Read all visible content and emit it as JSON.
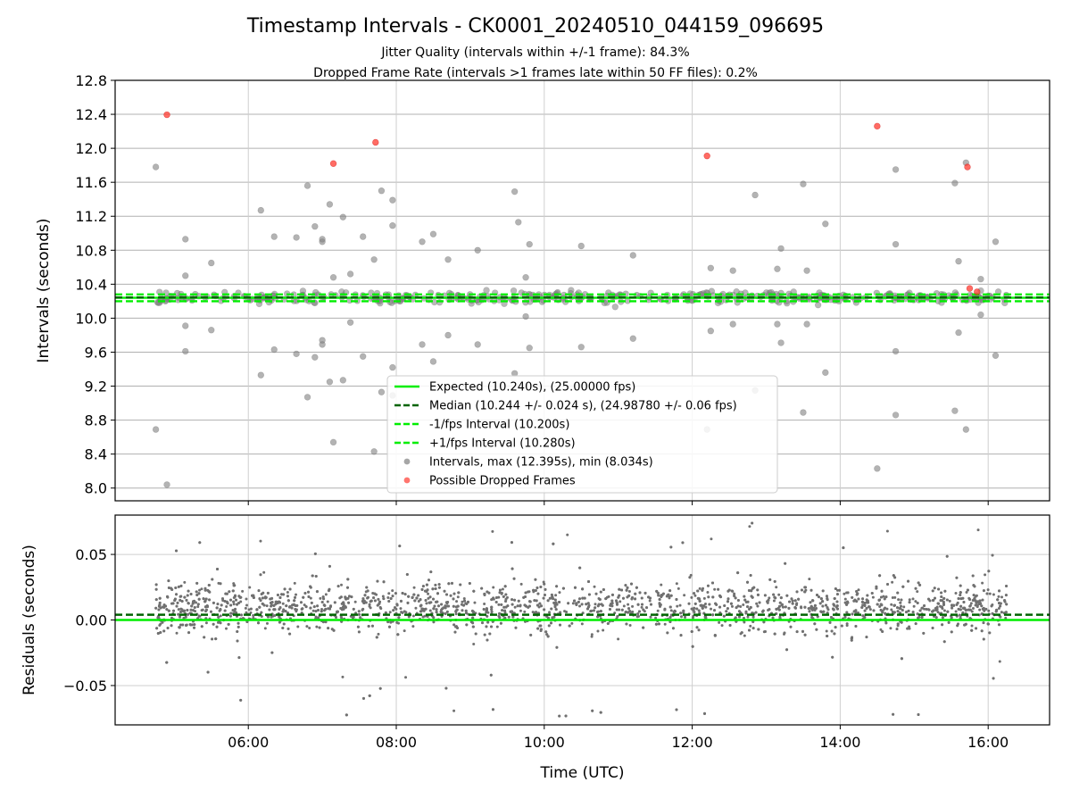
{
  "header": {
    "title": "Timestamp Intervals - CK0001_20240510_044159_096695",
    "subtitle1": "Jitter Quality (intervals within +/-1 frame): 84.3%",
    "subtitle2": "Dropped Frame Rate (intervals >1 frames late within 50 FF files): 0.2%"
  },
  "chart_data": [
    {
      "type": "scatter",
      "ylabel": "Intervals (seconds)",
      "xlabel": "",
      "xlim_hours": [
        4.2,
        16.83
      ],
      "ylim": [
        7.85,
        12.8
      ],
      "yticks": [
        8.0,
        8.4,
        8.8,
        9.2,
        9.6,
        10.0,
        10.4,
        10.8,
        11.2,
        11.6,
        12.0,
        12.4,
        12.8
      ],
      "ytick_labels": [
        "8.0",
        "8.4",
        "8.8",
        "9.2",
        "9.6",
        "10.0",
        "10.4",
        "10.8",
        "11.2",
        "11.6",
        "12.0",
        "12.4",
        "12.8"
      ],
      "grid": true,
      "legend_position": "lower-center",
      "lines": [
        {
          "name": "Expected (10.240s), (25.00000 fps)",
          "y": 10.24,
          "color": "#00ee00",
          "style": "solid"
        },
        {
          "name": "Median (10.244 +/- 0.024 s), (24.98780 +/- 0.06 fps)",
          "y": 10.244,
          "color": "#006400",
          "style": "dashed"
        },
        {
          "name": "-1/fps Interval (10.200s)",
          "y": 10.2,
          "color": "#00ee00",
          "style": "dashed"
        },
        {
          "name": "+1/fps Interval (10.280s)",
          "y": 10.28,
          "color": "#00ee00",
          "style": "dashed"
        }
      ],
      "series": [
        {
          "name": "Intervals, max (12.395s), min (8.034s)",
          "color": "#808080",
          "marker": "circle",
          "points": [
            [
              4.75,
              11.78
            ],
            [
              4.75,
              8.69
            ],
            [
              4.9,
              8.04
            ],
            [
              5.15,
              10.93
            ],
            [
              5.15,
              10.5
            ],
            [
              5.15,
              9.91
            ],
            [
              5.15,
              9.61
            ],
            [
              5.5,
              10.65
            ],
            [
              5.5,
              9.86
            ],
            [
              6.17,
              11.27
            ],
            [
              6.17,
              9.33
            ],
            [
              6.35,
              10.96
            ],
            [
              6.35,
              9.63
            ],
            [
              6.65,
              10.95
            ],
            [
              6.65,
              9.58
            ],
            [
              6.8,
              11.56
            ],
            [
              6.8,
              9.07
            ],
            [
              6.9,
              11.08
            ],
            [
              6.9,
              9.54
            ],
            [
              7.0,
              10.9
            ],
            [
              7.0,
              10.93
            ],
            [
              7.0,
              9.74
            ],
            [
              7.0,
              9.69
            ],
            [
              7.1,
              11.34
            ],
            [
              7.1,
              9.25
            ],
            [
              7.15,
              10.48
            ],
            [
              7.15,
              8.54
            ],
            [
              7.28,
              11.19
            ],
            [
              7.28,
              9.27
            ],
            [
              7.38,
              10.52
            ],
            [
              7.38,
              9.95
            ],
            [
              7.55,
              10.96
            ],
            [
              7.55,
              9.55
            ],
            [
              7.7,
              10.69
            ],
            [
              7.7,
              8.43
            ],
            [
              7.8,
              11.5
            ],
            [
              7.8,
              9.13
            ],
            [
              7.95,
              11.39
            ],
            [
              7.95,
              11.09
            ],
            [
              7.95,
              9.42
            ],
            [
              7.95,
              9.09
            ],
            [
              8.35,
              10.9
            ],
            [
              8.35,
              9.69
            ],
            [
              8.5,
              10.99
            ],
            [
              8.5,
              9.49
            ],
            [
              8.7,
              10.69
            ],
            [
              8.7,
              9.8
            ],
            [
              9.1,
              10.8
            ],
            [
              9.1,
              9.69
            ],
            [
              9.6,
              11.49
            ],
            [
              9.6,
              9.35
            ],
            [
              9.65,
              11.13
            ],
            [
              9.8,
              10.87
            ],
            [
              9.8,
              9.65
            ],
            [
              9.75,
              10.48
            ],
            [
              9.75,
              10.02
            ],
            [
              10.5,
              10.85
            ],
            [
              10.5,
              9.66
            ],
            [
              11.2,
              10.74
            ],
            [
              11.2,
              9.76
            ],
            [
              12.25,
              10.59
            ],
            [
              12.25,
              9.85
            ],
            [
              12.2,
              8.69
            ],
            [
              12.55,
              10.56
            ],
            [
              12.55,
              9.93
            ],
            [
              12.85,
              11.45
            ],
            [
              12.85,
              9.15
            ],
            [
              13.2,
              10.82
            ],
            [
              13.2,
              9.71
            ],
            [
              13.15,
              10.58
            ],
            [
              13.15,
              9.93
            ],
            [
              13.5,
              11.58
            ],
            [
              13.5,
              8.89
            ],
            [
              13.55,
              10.56
            ],
            [
              13.55,
              9.93
            ],
            [
              13.8,
              11.11
            ],
            [
              13.8,
              9.36
            ],
            [
              14.5,
              8.23
            ],
            [
              14.75,
              11.75
            ],
            [
              14.75,
              10.87
            ],
            [
              14.75,
              9.61
            ],
            [
              14.75,
              8.86
            ],
            [
              15.55,
              11.59
            ],
            [
              15.55,
              8.91
            ],
            [
              15.6,
              10.67
            ],
            [
              15.6,
              9.83
            ],
            [
              15.7,
              11.83
            ],
            [
              15.7,
              8.69
            ],
            [
              15.9,
              10.46
            ],
            [
              15.9,
              10.04
            ],
            [
              16.1,
              10.9
            ],
            [
              16.1,
              9.56
            ]
          ],
          "band": {
            "x_range": [
              4.75,
              16.25
            ],
            "y_center": 10.244,
            "y_spread": 0.14
          }
        },
        {
          "name": "Possible Dropped Frames",
          "color": "#ff3b30",
          "marker": "circle",
          "points": [
            [
              4.9,
              12.395
            ],
            [
              7.15,
              11.82
            ],
            [
              7.72,
              12.07
            ],
            [
              12.2,
              11.91
            ],
            [
              14.5,
              12.26
            ],
            [
              15.72,
              11.78
            ],
            [
              15.75,
              10.35
            ],
            [
              15.85,
              10.31
            ]
          ]
        }
      ],
      "legend": [
        "Expected (10.240s), (25.00000 fps)",
        "Median (10.244 +/- 0.024 s), (24.98780 +/- 0.06 fps)",
        "-1/fps Interval (10.200s)",
        "+1/fps Interval (10.280s)",
        "Intervals, max (12.395s), min (8.034s)",
        "Possible Dropped Frames"
      ]
    },
    {
      "type": "scatter",
      "ylabel": "Residuals (seconds)",
      "xlabel": "Time (UTC)",
      "xlim_hours": [
        4.2,
        16.83
      ],
      "ylim": [
        -0.08,
        0.08
      ],
      "yticks": [
        -0.05,
        0.0,
        0.05
      ],
      "ytick_labels": [
        "−0.05",
        "0.00",
        "0.05"
      ],
      "xticks_hours": [
        6,
        8,
        10,
        12,
        14,
        16
      ],
      "xtick_labels": [
        "06:00",
        "08:00",
        "10:00",
        "12:00",
        "14:00",
        "16:00"
      ],
      "grid": true,
      "lines": [
        {
          "name": "Expected",
          "y": 0.0,
          "color": "#00ee00",
          "style": "solid"
        },
        {
          "name": "Median",
          "y": 0.004,
          "color": "#006400",
          "style": "dashed"
        }
      ],
      "series": [
        {
          "name": "Residuals",
          "color": "#707070",
          "marker": "dot",
          "band": {
            "x_range": [
              4.75,
              16.25
            ],
            "y_center": 0.01,
            "y_spread": 0.045
          }
        }
      ]
    }
  ]
}
